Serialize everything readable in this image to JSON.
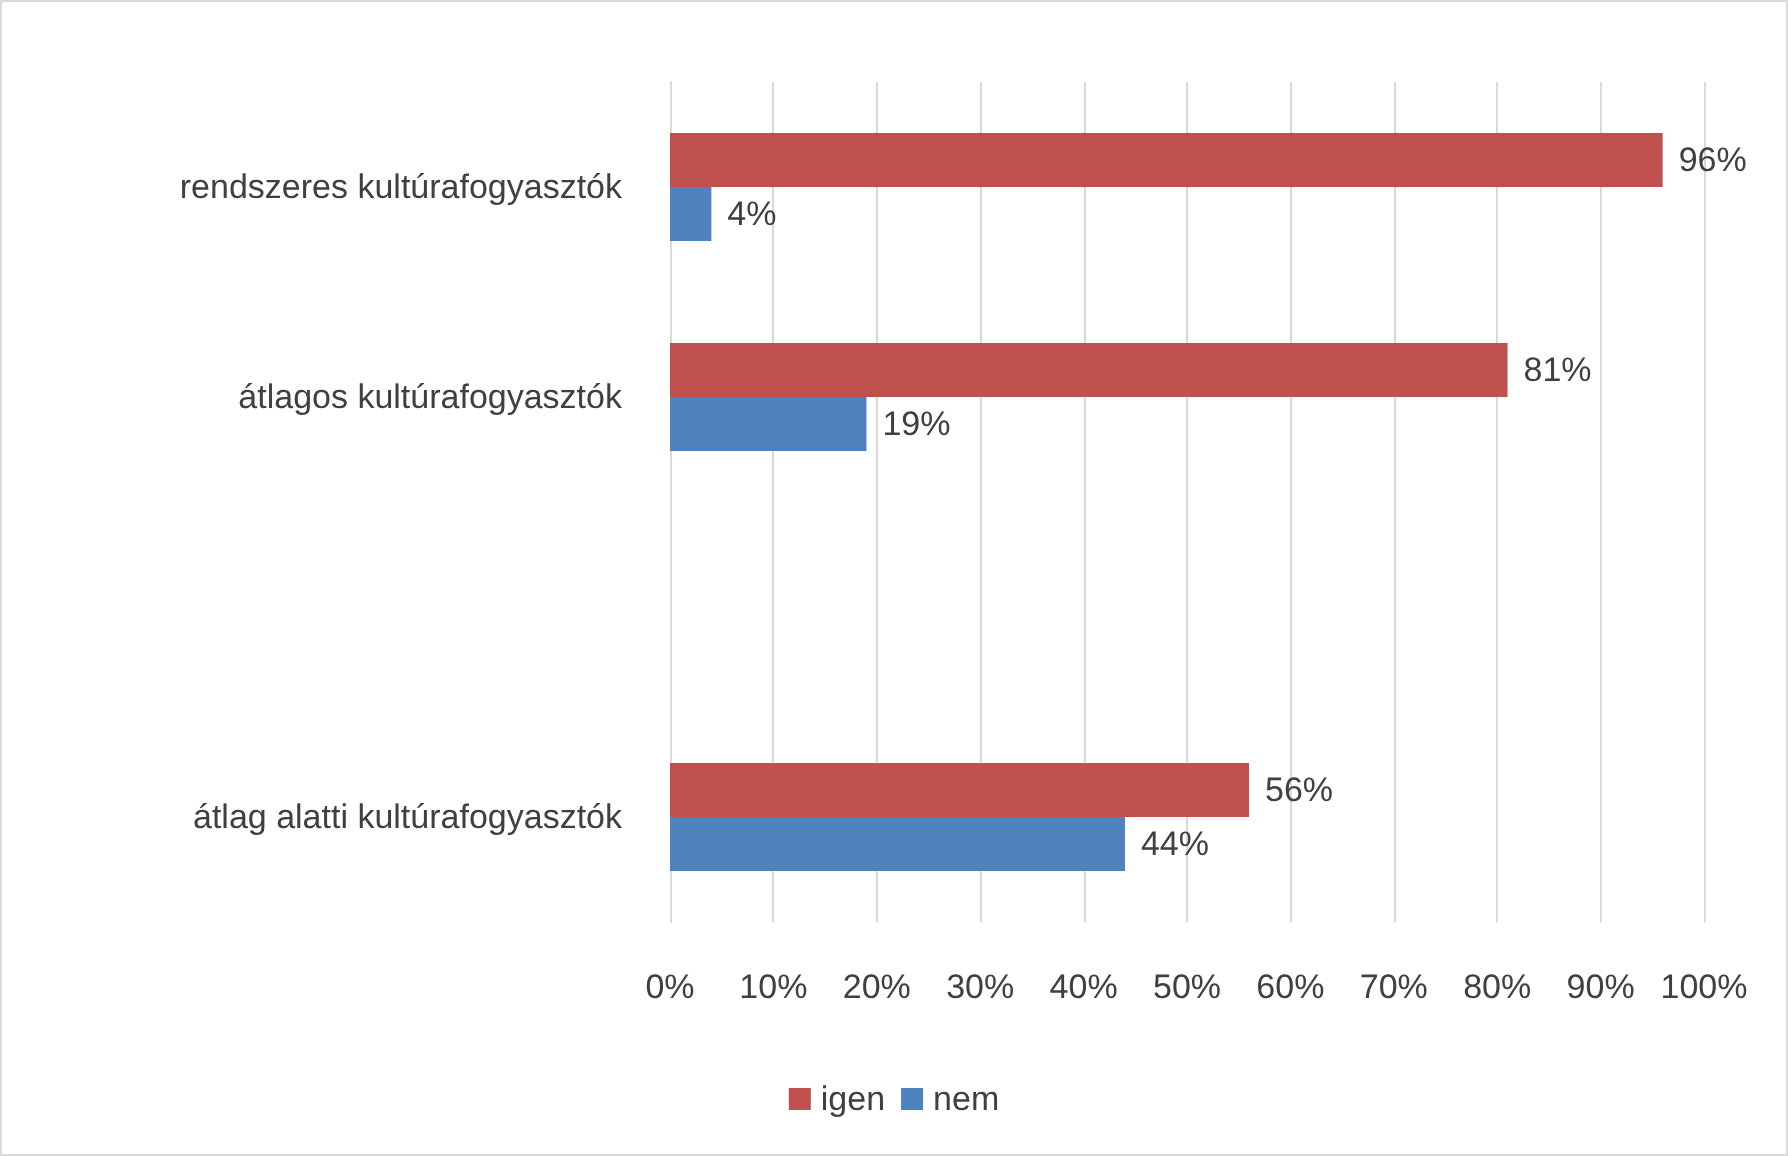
{
  "chart_data": {
    "type": "bar",
    "orientation": "horizontal",
    "categories": [
      "rendszeres kultúrafogyasztók",
      "átlagos kultúrafogyasztók",
      null,
      "átlag alatti kultúrafogyasztók"
    ],
    "series": [
      {
        "name": "igen",
        "color": "#c0504d",
        "values": [
          96,
          81,
          null,
          56
        ],
        "value_labels": [
          "96%",
          "81%",
          null,
          "56%"
        ]
      },
      {
        "name": "nem",
        "color": "#4f81bd",
        "values": [
          4,
          19,
          null,
          44
        ],
        "value_labels": [
          "4%",
          "19%",
          null,
          "44%"
        ]
      }
    ],
    "xlim": [
      0,
      100
    ],
    "xticks": [
      {
        "value": 0,
        "label": "0%"
      },
      {
        "value": 10,
        "label": "10%"
      },
      {
        "value": 20,
        "label": "20%"
      },
      {
        "value": 30,
        "label": "30%"
      },
      {
        "value": 40,
        "label": "40%"
      },
      {
        "value": 50,
        "label": "50%"
      },
      {
        "value": 60,
        "label": "60%"
      },
      {
        "value": 70,
        "label": "70%"
      },
      {
        "value": 80,
        "label": "80%"
      },
      {
        "value": 90,
        "label": "90%"
      },
      {
        "value": 100,
        "label": "100%"
      }
    ],
    "grid": "x",
    "legend": "bottom"
  }
}
